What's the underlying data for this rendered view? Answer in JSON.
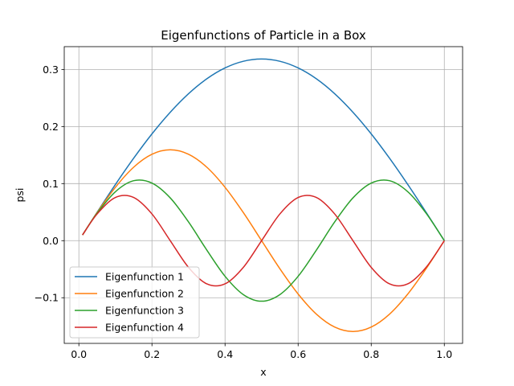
{
  "chart_data": {
    "type": "line",
    "title": "Eigenfunctions of Particle in a Box",
    "xlabel": "x",
    "ylabel": "psi",
    "xlim": [
      -0.04,
      1.05
    ],
    "ylim": [
      -0.18,
      0.34
    ],
    "xticks": [
      0.0,
      0.2,
      0.4,
      0.6,
      0.8,
      1.0
    ],
    "xtick_labels": [
      "0.0",
      "0.2",
      "0.4",
      "0.6",
      "0.8",
      "1.0"
    ],
    "yticks": [
      -0.1,
      0.0,
      0.1,
      0.2,
      0.3
    ],
    "ytick_labels": [
      "−0.1",
      "0.0",
      "0.1",
      "0.2",
      "0.3"
    ],
    "grid": true,
    "legend_position": "lower-left",
    "x": [
      0.01,
      0.05,
      0.1,
      0.15,
      0.2,
      0.25,
      0.3,
      0.35,
      0.4,
      0.45,
      0.5,
      0.55,
      0.6,
      0.65,
      0.7,
      0.75,
      0.8,
      0.85,
      0.9,
      0.95,
      1.0
    ],
    "series": [
      {
        "name": "Eigenfunction 1",
        "color": "#1f77b4",
        "values": [
          0.01,
          0.0498,
          0.0984,
          0.1445,
          0.1871,
          0.225,
          0.2575,
          0.2836,
          0.3027,
          0.3144,
          0.3183,
          0.3144,
          0.3027,
          0.2836,
          0.2575,
          0.225,
          0.1871,
          0.1445,
          0.0984,
          0.0498,
          0.0
        ]
      },
      {
        "name": "Eigenfunction 2",
        "color": "#ff7f0e",
        "values": [
          0.01,
          0.0492,
          0.0935,
          0.1288,
          0.1514,
          0.1592,
          0.1514,
          0.1288,
          0.0935,
          0.0492,
          0.0,
          -0.0492,
          -0.0935,
          -0.1288,
          -0.1514,
          -0.1592,
          -0.1514,
          -0.1288,
          -0.0935,
          -0.0492,
          0.0
        ]
      },
      {
        "name": "Eigenfunction 3",
        "color": "#2ca02c",
        "values": [
          0.01,
          0.0482,
          0.0858,
          0.1051,
          0.1009,
          0.075,
          0.0328,
          -0.0164,
          -0.0624,
          -0.0945,
          -0.1061,
          -0.0945,
          -0.0624,
          -0.0164,
          0.0328,
          0.075,
          0.1009,
          0.1051,
          0.0858,
          0.0482,
          0.0
        ]
      },
      {
        "name": "Eigenfunction 4",
        "color": "#d62728",
        "values": [
          0.01,
          0.0468,
          0.0757,
          0.0757,
          0.0468,
          0.0,
          -0.0468,
          -0.0757,
          -0.0757,
          -0.0468,
          0.0,
          0.0468,
          0.0757,
          0.0757,
          0.0468,
          0.0,
          -0.0468,
          -0.0757,
          -0.0757,
          -0.0468,
          0.0
        ]
      }
    ]
  }
}
